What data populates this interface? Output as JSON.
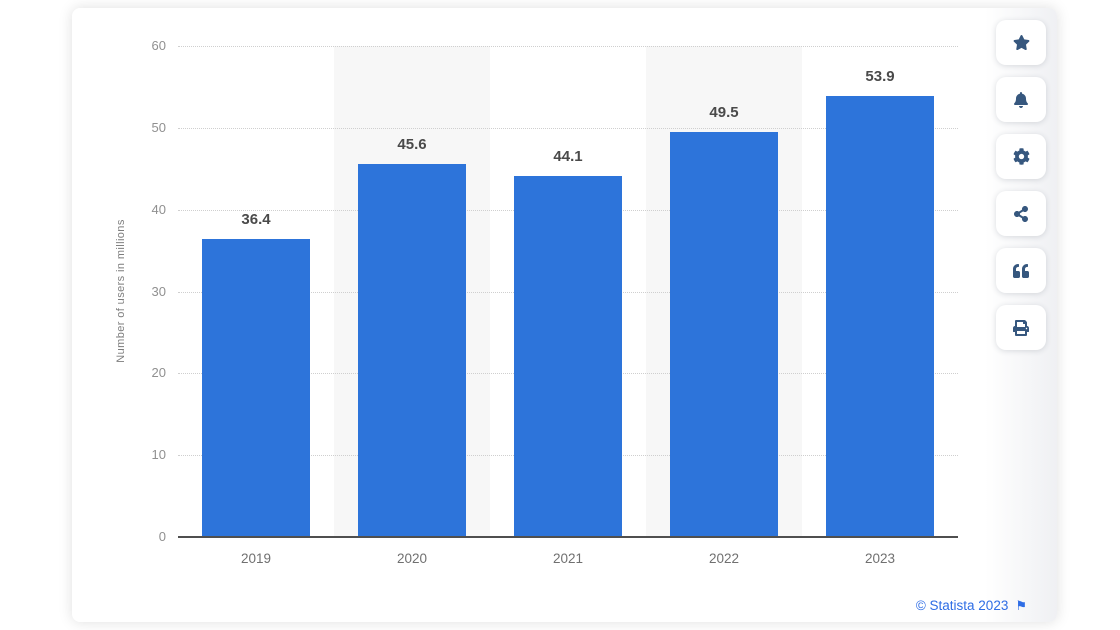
{
  "chart_data": {
    "type": "bar",
    "title": "",
    "categories": [
      "2019",
      "2020",
      "2021",
      "2022",
      "2023"
    ],
    "values": [
      36.4,
      45.6,
      44.1,
      49.5,
      53.9
    ],
    "xlabel": "",
    "ylabel": "Number of users in millions",
    "ylim": [
      0,
      60
    ],
    "yticks": [
      0,
      10,
      20,
      30,
      40,
      50,
      60
    ],
    "grid": "horizontal-dotted",
    "legend": "none",
    "banded_categories": [
      "2020",
      "2022"
    ]
  },
  "toolbar": {
    "icons": [
      {
        "name": "star-icon"
      },
      {
        "name": "bell-icon"
      },
      {
        "name": "gear-icon"
      },
      {
        "name": "share-icon"
      },
      {
        "name": "quote-icon"
      },
      {
        "name": "printer-icon"
      }
    ]
  },
  "footer": {
    "attribution": "© Statista 2023",
    "flag": "⚑"
  },
  "colors": {
    "bar": "#2d74da",
    "band": "#f7f7f7",
    "icon": "#36577e",
    "attribution": "#2e6de5"
  }
}
